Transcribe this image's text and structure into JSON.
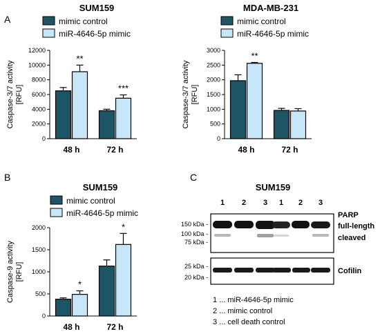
{
  "panel_labels": {
    "a": "A",
    "b": "B",
    "c": "C"
  },
  "colors": {
    "control": "#1e5566",
    "mimic": "#c7e6f7",
    "stroke": "#000000"
  },
  "chart_data": [
    {
      "type": "bar",
      "title": "SUM159",
      "ylabel": "Caspase-3/7 activity [RFU]",
      "ylabel_lines": [
        "Caspase-3/7 activity",
        "[RFU]"
      ],
      "categories": [
        "48 h",
        "72 h"
      ],
      "ylim": [
        0,
        12000
      ],
      "yticks": [
        "0",
        "2000",
        "4000",
        "6000",
        "8000",
        "10000",
        "12000"
      ],
      "ytick_values": [
        0,
        2000,
        4000,
        6000,
        8000,
        10000,
        12000
      ],
      "series": [
        {
          "name": "mimic control",
          "values": [
            6500,
            3800
          ],
          "errors": [
            450,
            200
          ]
        },
        {
          "name": "miR-4646-5p mimic",
          "values": [
            9100,
            5500
          ],
          "errors": [
            900,
            450
          ]
        }
      ],
      "significance": [
        "**",
        "***"
      ],
      "legend": "top-left"
    },
    {
      "type": "bar",
      "title": "MDA-MB-231",
      "ylabel": "Caspase-3/7 activity [RFU]",
      "ylabel_lines": [
        "Caspase-3/7 activity",
        "[RFU]"
      ],
      "categories": [
        "48 h",
        "72 h"
      ],
      "ylim": [
        0,
        3000
      ],
      "yticks": [
        "0",
        "500",
        "1000",
        "1500",
        "2000",
        "2500",
        "3000"
      ],
      "ytick_values": [
        0,
        500,
        1000,
        1500,
        2000,
        2500,
        3000
      ],
      "series": [
        {
          "name": "mimic control",
          "values": [
            1970,
            960
          ],
          "errors": [
            200,
            70
          ]
        },
        {
          "name": "miR-4646-5p mimic",
          "values": [
            2560,
            940
          ],
          "errors": [
            30,
            80
          ]
        }
      ],
      "significance": [
        "**",
        ""
      ],
      "legend": "top-left"
    },
    {
      "type": "bar",
      "title": "SUM159",
      "ylabel": "Caspase-9 activity [RFU]",
      "ylabel_lines": [
        "Caspase-9 activity",
        "[RFU]"
      ],
      "categories": [
        "48 h",
        "72 h"
      ],
      "ylim": [
        0,
        2000
      ],
      "yticks": [
        "0",
        "500",
        "1000",
        "1500",
        "2000"
      ],
      "ytick_values": [
        0,
        500,
        1000,
        1500,
        2000
      ],
      "series": [
        {
          "name": "mimic control",
          "values": [
            380,
            1130
          ],
          "errors": [
            30,
            140
          ]
        },
        {
          "name": "miR-4646-5p mimic",
          "values": [
            490,
            1620
          ],
          "errors": [
            80,
            250
          ]
        }
      ],
      "significance": [
        "*",
        "*"
      ],
      "legend": "top-left"
    }
  ],
  "blot": {
    "title": "SUM159",
    "lane_labels": [
      "1",
      "2",
      "3",
      "1",
      "2",
      "3"
    ],
    "top_markers": [
      "150 kDa -",
      "100 kDa -",
      "75 kDa -"
    ],
    "bottom_markers": [
      "25 kDa -",
      "20 kDa -"
    ],
    "band_labels": [
      "PARP",
      "full-length",
      "cleaved",
      "Cofilin"
    ],
    "key": [
      "1 ... miR-4646-5p mimic",
      "2 ... mimic control",
      "3 ... cell death control"
    ]
  }
}
